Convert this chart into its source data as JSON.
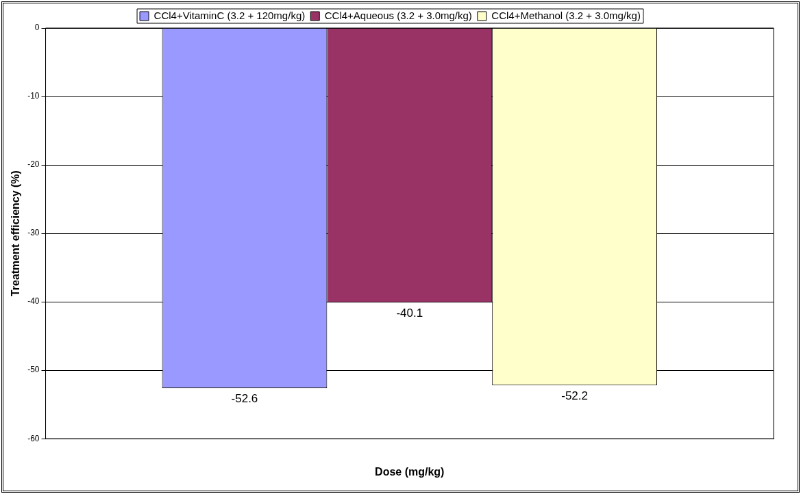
{
  "chart_data": {
    "type": "bar",
    "categories": [
      null
    ],
    "xlabel": "Dose (mg/kg)",
    "ylabel": "Treatment efficiency (%)",
    "series": [
      {
        "name": "CCl4+VitaminC (3.2 + 120mg/kg)",
        "color": "#9999ff",
        "values": [
          -52.6
        ]
      },
      {
        "name": "CCl4+Aqueous (3.2 + 3.0mg/kg)",
        "color": "#993366",
        "values": [
          -40.1
        ]
      },
      {
        "name": "CCl4+Methanol (3.2 + 3.0mg/kg)",
        "color": "#ffffcc",
        "values": [
          -52.2
        ]
      }
    ],
    "ylim": [
      -60,
      0
    ],
    "yticks": [
      -60,
      -50,
      -40,
      -30,
      -20,
      -10,
      0
    ],
    "grid": "y",
    "legend": "top",
    "data_labels": true
  }
}
